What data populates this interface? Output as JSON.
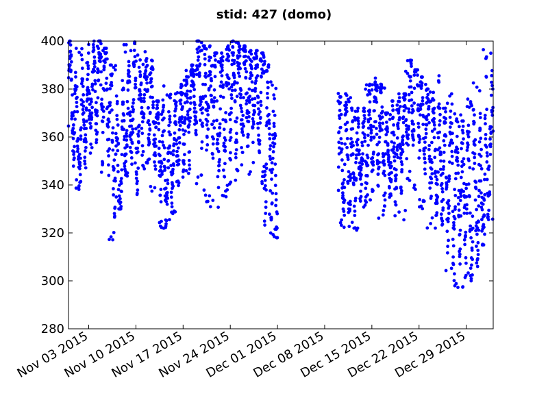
{
  "chart_data": {
    "type": "scatter",
    "title": "stid: 427 (domo)",
    "xlabel": "",
    "ylabel": "",
    "xlim": [
      "2015-10-31",
      "2016-01-02"
    ],
    "ylim": [
      280,
      400
    ],
    "y_ticks": [
      280,
      300,
      320,
      340,
      360,
      380,
      400
    ],
    "x_ticks": [
      {
        "date": "2015-11-03",
        "label": "Nov 03 2015"
      },
      {
        "date": "2015-11-10",
        "label": "Nov 10 2015"
      },
      {
        "date": "2015-11-17",
        "label": "Nov 17 2015"
      },
      {
        "date": "2015-11-24",
        "label": "Nov 24 2015"
      },
      {
        "date": "2015-12-01",
        "label": "Dec 01 2015"
      },
      {
        "date": "2015-12-08",
        "label": "Dec 08 2015"
      },
      {
        "date": "2015-12-15",
        "label": "Dec 15 2015"
      },
      {
        "date": "2015-12-22",
        "label": "Dec 22 2015"
      },
      {
        "date": "2015-12-29",
        "label": "Dec 29 2015"
      }
    ],
    "grid": false,
    "legend": "none",
    "marker_color": "#0000ff",
    "series": [
      {
        "x": [
          "2015-10-31",
          "2015-11-01",
          "2015-11-02",
          "2015-11-03",
          "2015-11-04",
          "2015-11-05",
          "2015-11-06",
          "2015-11-07",
          "2015-11-08",
          "2015-11-09",
          "2015-11-10",
          "2015-11-11",
          "2015-11-12",
          "2015-11-13",
          "2015-11-14",
          "2015-11-15",
          "2015-11-16",
          "2015-11-17",
          "2015-11-18",
          "2015-11-19",
          "2015-11-20",
          "2015-11-21",
          "2015-11-22",
          "2015-11-23",
          "2015-11-24",
          "2015-11-25",
          "2015-11-26",
          "2015-11-27",
          "2015-11-28",
          "2015-11-29",
          "2015-11-30",
          "2015-12-10",
          "2015-12-11",
          "2015-12-12",
          "2015-12-13",
          "2015-12-14",
          "2015-12-15",
          "2015-12-16",
          "2015-12-17",
          "2015-12-18",
          "2015-12-19",
          "2015-12-20",
          "2015-12-21",
          "2015-12-22",
          "2015-12-23",
          "2015-12-24",
          "2015-12-25",
          "2015-12-26",
          "2015-12-27",
          "2015-12-28",
          "2015-12-29",
          "2015-12-30",
          "2015-12-31",
          "2016-01-01"
        ],
        "y_center": [
          375,
          362,
          372,
          380,
          383,
          377,
          362,
          348,
          366,
          373,
          364,
          376,
          372,
          358,
          349,
          356,
          362,
          367,
          377,
          383,
          381,
          379,
          370,
          373,
          375,
          378,
          382,
          380,
          378,
          357,
          345,
          350,
          352,
          352,
          354,
          358,
          360,
          358,
          355,
          355,
          362,
          375,
          380,
          367,
          360,
          358,
          352,
          345,
          340,
          335,
          332,
          338,
          345,
          358
        ],
        "y_min": [
          340,
          338,
          345,
          350,
          340,
          328,
          315,
          330,
          343,
          345,
          335,
          345,
          336,
          320,
          320,
          325,
          338,
          340,
          352,
          340,
          332,
          330,
          330,
          335,
          340,
          345,
          342,
          345,
          340,
          322,
          318,
          320,
          315,
          320,
          326,
          330,
          335,
          325,
          318,
          325,
          325,
          340,
          335,
          330,
          322,
          318,
          310,
          300,
          297,
          297,
          300,
          305,
          315,
          325
        ],
        "y_max": [
          400,
          398,
          395,
          400,
          400,
          397,
          390,
          395,
          400,
          400,
          395,
          396,
          392,
          375,
          382,
          378,
          382,
          388,
          390,
          400,
          398,
          395,
          395,
          398,
          400,
          400,
          398,
          396,
          395,
          392,
          385,
          380,
          378,
          372,
          372,
          382,
          385,
          382,
          370,
          375,
          378,
          392,
          388,
          385,
          380,
          388,
          372,
          378,
          370,
          370,
          376,
          386,
          397,
          398
        ]
      }
    ]
  }
}
